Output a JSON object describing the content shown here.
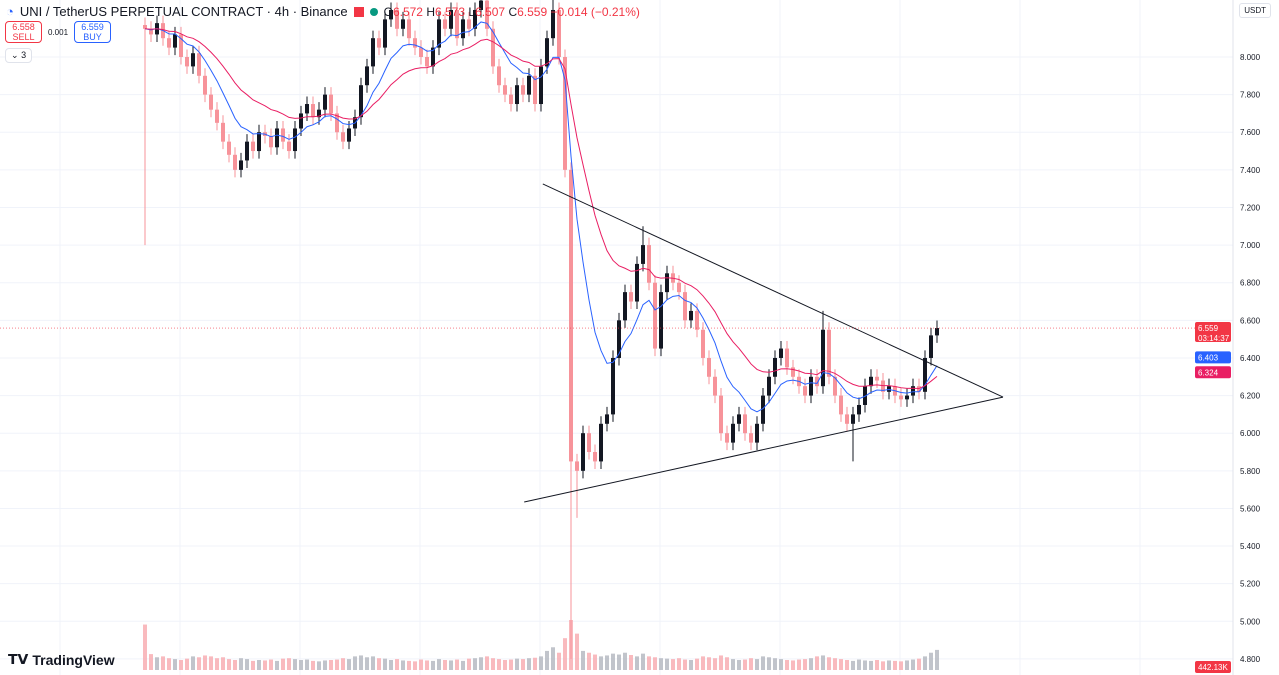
{
  "header": {
    "symbol_title": "UNI / TetherUS PERPETUAL CONTRACT · 4h · Binance",
    "open": "6.572",
    "high": "6.573",
    "low": "6.507",
    "close": "6.559",
    "change": "−0.014 (−0.21%)",
    "open_label": "O",
    "high_label": "H",
    "low_label": "L",
    "close_label": "C"
  },
  "trade": {
    "sell_price": "6.558",
    "sell_label": "SELL",
    "spread": "0.001",
    "buy_price": "6.559",
    "buy_label": "BUY"
  },
  "indicators_collapsed": "3",
  "currency": "USDT",
  "logo": "TradingView",
  "colors": {
    "up": "#131722",
    "down": "#f7939a",
    "ema_fast": "#2962ff",
    "ema_slow": "#e91e63",
    "last_price": "#f23645"
  },
  "chart_data": {
    "type": "candlestick",
    "interval": "4h",
    "ylim": [
      4.8,
      8.3
    ],
    "y_ticks": [
      "8.000",
      "7.800",
      "7.600",
      "7.400",
      "7.200",
      "7.000",
      "6.800",
      "6.600",
      "6.400",
      "6.200",
      "6.000",
      "5.800",
      "5.600",
      "5.400",
      "5.200",
      "5.000",
      "4.800"
    ],
    "grid": true,
    "closes": [
      8.15,
      8.12,
      8.18,
      8.1,
      8.05,
      8.12,
      8.0,
      7.95,
      8.02,
      7.9,
      7.8,
      7.72,
      7.65,
      7.55,
      7.48,
      7.4,
      7.45,
      7.55,
      7.5,
      7.6,
      7.58,
      7.52,
      7.62,
      7.55,
      7.5,
      7.62,
      7.7,
      7.75,
      7.68,
      7.72,
      7.8,
      7.7,
      7.6,
      7.55,
      7.62,
      7.68,
      7.85,
      7.95,
      8.1,
      8.05,
      8.2,
      8.25,
      8.15,
      8.2,
      8.1,
      8.05,
      8.0,
      7.95,
      8.05,
      8.2,
      8.15,
      8.25,
      8.1,
      8.2,
      8.15,
      8.25,
      8.3,
      8.15,
      7.95,
      7.85,
      7.8,
      7.75,
      7.85,
      7.8,
      7.9,
      7.75,
      7.95,
      8.1,
      8.25,
      8.0,
      7.4,
      5.85,
      5.8,
      6.0,
      5.9,
      5.85,
      6.05,
      6.1,
      6.4,
      6.6,
      6.75,
      6.7,
      6.9,
      7.0,
      6.8,
      6.45,
      6.75,
      6.85,
      6.8,
      6.75,
      6.6,
      6.65,
      6.55,
      6.4,
      6.3,
      6.2,
      6.0,
      5.95,
      6.05,
      6.1,
      6.0,
      5.95,
      6.05,
      6.2,
      6.3,
      6.4,
      6.45,
      6.35,
      6.3,
      6.25,
      6.2,
      6.3,
      6.25,
      6.55,
      6.3,
      6.2,
      6.1,
      6.05,
      6.1,
      6.15,
      6.25,
      6.3,
      6.28,
      6.22,
      6.25,
      6.2,
      6.18,
      6.2,
      6.25,
      6.22,
      6.4,
      6.52,
      6.559
    ],
    "extreme_wicks": [
      {
        "index": 0,
        "low": 7.0
      },
      {
        "index": 68,
        "high": 8.4
      },
      {
        "index": 71,
        "low": 4.8
      },
      {
        "index": 72,
        "low": 5.55
      },
      {
        "index": 83,
        "high": 7.1
      },
      {
        "index": 113,
        "high": 6.65
      },
      {
        "index": 118,
        "low": 5.85
      }
    ],
    "volumes_k": [
      1000,
      350,
      280,
      300,
      260,
      240,
      220,
      250,
      300,
      280,
      320,
      300,
      260,
      280,
      240,
      220,
      260,
      240,
      200,
      220,
      210,
      230,
      200,
      250,
      260,
      240,
      220,
      230,
      200,
      190,
      210,
      220,
      230,
      260,
      240,
      300,
      320,
      280,
      300,
      260,
      250,
      220,
      240,
      210,
      200,
      190,
      230,
      210,
      200,
      240,
      220,
      210,
      230,
      200,
      250,
      260,
      280,
      300,
      260,
      240,
      220,
      230,
      250,
      240,
      260,
      270,
      300,
      420,
      500,
      380,
      700,
      1100,
      800,
      420,
      380,
      340,
      300,
      320,
      360,
      340,
      380,
      330,
      300,
      360,
      300,
      280,
      260,
      250,
      240,
      260,
      230,
      220,
      250,
      300,
      280,
      260,
      320,
      280,
      240,
      220,
      230,
      260,
      240,
      300,
      280,
      260,
      240,
      220,
      210,
      230,
      240,
      260,
      300,
      320,
      280,
      260,
      240,
      220,
      200,
      230,
      210,
      200,
      220,
      190,
      210,
      200,
      190,
      210,
      230,
      250,
      300,
      380,
      442.13
    ],
    "volume_last_label": "442.13K",
    "last_price_label": "6.559",
    "countdown": "03:14:37",
    "ema_fast_value": "6.403",
    "ema_slow_value": "6.324",
    "ema_periods": [
      9,
      21
    ],
    "trendlines": [
      {
        "from": {
          "index": 66.3,
          "price": 7.325
        },
        "to": {
          "index": 143,
          "price": 6.192
        }
      },
      {
        "from": {
          "index": 63.2,
          "price": 5.634
        },
        "to": {
          "index": 143,
          "price": 6.192
        }
      }
    ]
  }
}
